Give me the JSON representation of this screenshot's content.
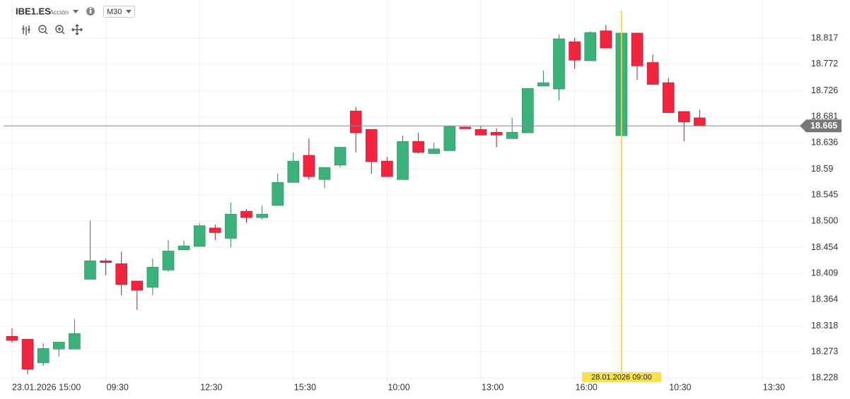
{
  "ui": {
    "symbol": "IBE1.ES",
    "instrument_type": "Acción",
    "timeframe": "M30"
  },
  "chart_data": {
    "type": "candlestick",
    "categories": [
      "23.01.2026 15:00",
      null,
      null,
      null,
      null,
      null,
      "09:30",
      null,
      null,
      null,
      null,
      null,
      "12:30",
      null,
      null,
      null,
      null,
      null,
      "15:30",
      null,
      null,
      null,
      null,
      null,
      "10:00",
      null,
      null,
      null,
      null,
      null,
      "13:00",
      null,
      null,
      null,
      null,
      null,
      "16:00",
      null,
      null,
      null,
      null,
      null,
      "10:30",
      null,
      null,
      null,
      null,
      null,
      "13:30"
    ],
    "open": [
      18.3,
      18.295,
      18.254,
      18.278,
      18.278,
      18.399,
      18.431,
      18.426,
      18.396,
      18.385,
      18.415,
      18.45,
      18.456,
      18.488,
      18.47,
      18.517,
      18.506,
      18.527,
      18.567,
      18.614,
      18.572,
      18.597,
      18.691,
      18.659,
      18.604,
      18.572,
      18.638,
      18.617,
      18.622,
      18.663,
      18.659,
      18.654,
      18.643,
      18.653,
      18.734,
      18.729,
      18.811,
      18.778,
      18.83,
      18.648,
      18.826,
      18.775,
      18.74,
      18.69,
      18.679,
      null,
      null,
      null,
      null
    ],
    "high": [
      18.314,
      18.295,
      18.288,
      18.29,
      18.33,
      18.501,
      18.435,
      18.447,
      18.396,
      18.435,
      18.467,
      18.466,
      18.496,
      18.494,
      18.532,
      18.521,
      18.527,
      18.582,
      18.619,
      18.643,
      18.593,
      18.628,
      18.698,
      18.659,
      18.611,
      18.648,
      18.653,
      18.636,
      18.666,
      18.664,
      18.665,
      18.661,
      18.679,
      18.73,
      18.761,
      18.824,
      18.818,
      18.829,
      18.84,
      18.826,
      18.826,
      18.789,
      18.748,
      18.69,
      18.693,
      null,
      null,
      null,
      null
    ],
    "low": [
      18.289,
      18.234,
      18.249,
      18.265,
      18.278,
      18.399,
      18.406,
      18.371,
      18.346,
      18.371,
      18.412,
      18.45,
      18.456,
      18.467,
      18.454,
      18.497,
      18.503,
      18.527,
      18.567,
      18.572,
      18.557,
      18.593,
      18.619,
      18.582,
      18.577,
      18.572,
      18.617,
      18.617,
      18.622,
      18.66,
      18.649,
      18.628,
      18.643,
      18.653,
      18.734,
      18.709,
      18.764,
      18.778,
      18.8,
      18.648,
      18.745,
      18.737,
      18.688,
      18.638,
      18.665,
      null,
      null,
      null,
      null
    ],
    "close": [
      18.293,
      18.243,
      18.279,
      18.29,
      18.305,
      18.431,
      18.428,
      18.39,
      18.38,
      18.42,
      18.448,
      18.457,
      18.492,
      18.48,
      18.512,
      18.506,
      18.512,
      18.567,
      18.604,
      18.577,
      18.593,
      18.628,
      18.653,
      18.603,
      18.577,
      18.638,
      18.619,
      18.625,
      18.664,
      18.66,
      18.649,
      18.649,
      18.654,
      18.73,
      18.74,
      18.816,
      18.779,
      18.827,
      18.8,
      18.826,
      18.769,
      18.737,
      18.688,
      18.672,
      18.665,
      null,
      null,
      null,
      null
    ],
    "up_color": "#3bb27a",
    "down_color": "#f2243e",
    "last_price": 18.665,
    "crosshair_label": "28.01.2026 09:00",
    "ylim": [
      18.222,
      18.865
    ],
    "yticks": [
      18.228,
      18.273,
      18.318,
      18.364,
      18.409,
      18.454,
      {
        "value": 18.5,
        "label": "18.500"
      },
      18.545,
      18.59,
      18.636,
      18.681,
      18.726,
      18.772,
      18.817
    ],
    "grid": true
  }
}
